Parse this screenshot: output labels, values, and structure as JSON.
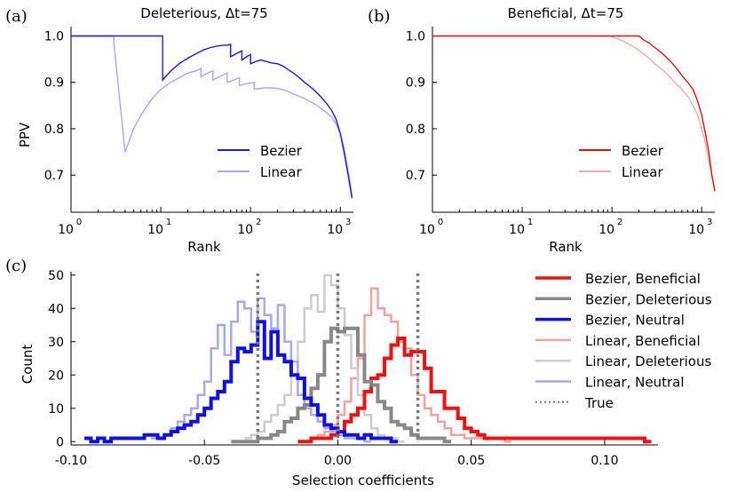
{
  "chart_data": [
    {
      "panel": "(a)",
      "type": "line",
      "title": "Deleterious, Δt=75",
      "xlabel": "Rank",
      "ylabel": "PPV",
      "xscale": "log",
      "xlim": [
        1,
        1400
      ],
      "ylim": [
        0.62,
        1.02
      ],
      "xticks": [
        "10",
        "10",
        "10",
        "10"
      ],
      "xtick_exponents": [
        "0",
        "1",
        "2",
        "3"
      ],
      "xtick_values": [
        1,
        10,
        100,
        1000
      ],
      "yticks": [
        "0.7",
        "0.8",
        "0.9",
        "1.0"
      ],
      "ytick_values": [
        0.7,
        0.8,
        0.9,
        1.0
      ],
      "legend_position": "lower-right",
      "series": [
        {
          "name": "Bezier",
          "color": "#1a1ad9",
          "x": [
            1,
            10.5,
            10.5,
            11,
            13,
            16,
            20,
            25,
            30,
            36,
            42,
            50,
            55,
            60,
            60,
            70,
            80,
            80,
            90,
            100,
            100,
            115,
            130,
            150,
            170,
            200,
            230,
            260,
            300,
            350,
            400,
            500,
            600,
            700,
            800,
            900,
            1000,
            1100,
            1200,
            1300,
            1350
          ],
          "y": [
            1.0,
            1.0,
            0.905,
            0.91,
            0.925,
            0.94,
            0.952,
            0.962,
            0.97,
            0.975,
            0.978,
            0.98,
            0.98,
            0.982,
            0.955,
            0.962,
            0.968,
            0.948,
            0.955,
            0.96,
            0.94,
            0.945,
            0.948,
            0.945,
            0.942,
            0.94,
            0.935,
            0.928,
            0.92,
            0.91,
            0.9,
            0.885,
            0.87,
            0.855,
            0.84,
            0.82,
            0.79,
            0.75,
            0.71,
            0.67,
            0.65
          ]
        },
        {
          "name": "Linear",
          "color": "#a8a8f0",
          "x": [
            1,
            3,
            3,
            4,
            5,
            6,
            8,
            10,
            13,
            16,
            20,
            25,
            28,
            28,
            32,
            38,
            38,
            45,
            55,
            55,
            65,
            75,
            75,
            90,
            110,
            110,
            140,
            170,
            200,
            250,
            300,
            350,
            400,
            500,
            600,
            700,
            800,
            900,
            1000,
            1100,
            1200,
            1300,
            1350
          ],
          "y": [
            1.0,
            1.0,
            0.985,
            0.75,
            0.8,
            0.83,
            0.865,
            0.885,
            0.9,
            0.91,
            0.92,
            0.925,
            0.93,
            0.912,
            0.918,
            0.925,
            0.905,
            0.912,
            0.92,
            0.9,
            0.905,
            0.91,
            0.893,
            0.897,
            0.9,
            0.885,
            0.888,
            0.888,
            0.887,
            0.882,
            0.875,
            0.87,
            0.865,
            0.855,
            0.845,
            0.835,
            0.825,
            0.81,
            0.79,
            0.76,
            0.72,
            0.68,
            0.655
          ]
        }
      ]
    },
    {
      "panel": "(b)",
      "type": "line",
      "title": "Beneficial, Δt=75",
      "xlabel": "Rank",
      "ylabel": "",
      "xscale": "log",
      "xlim": [
        1,
        1400
      ],
      "ylim": [
        0.62,
        1.02
      ],
      "xticks": [
        "10",
        "10",
        "10",
        "10"
      ],
      "xtick_exponents": [
        "0",
        "1",
        "2",
        "3"
      ],
      "xtick_values": [
        1,
        10,
        100,
        1000
      ],
      "yticks": [
        "0.7",
        "0.8",
        "0.9",
        "1.0"
      ],
      "ytick_values": [
        0.7,
        0.8,
        0.9,
        1.0
      ],
      "legend_position": "lower-right",
      "series": [
        {
          "name": "Bezier",
          "color": "#e81010",
          "x": [
            1,
            200,
            230,
            260,
            300,
            350,
            400,
            450,
            500,
            550,
            600,
            700,
            800,
            900,
            1000,
            1100,
            1200,
            1300,
            1400
          ],
          "y": [
            1.0,
            1.0,
            0.99,
            0.985,
            0.975,
            0.965,
            0.955,
            0.945,
            0.935,
            0.925,
            0.915,
            0.9,
            0.885,
            0.86,
            0.83,
            0.79,
            0.75,
            0.7,
            0.665
          ]
        },
        {
          "name": "Linear",
          "color": "#f4aaaa",
          "x": [
            1,
            95,
            110,
            130,
            150,
            180,
            210,
            250,
            300,
            350,
            400,
            450,
            500,
            600,
            700,
            800,
            900,
            1000,
            1100,
            1200,
            1300,
            1400
          ],
          "y": [
            1.0,
            1.0,
            0.995,
            0.99,
            0.983,
            0.975,
            0.965,
            0.955,
            0.94,
            0.93,
            0.92,
            0.91,
            0.9,
            0.885,
            0.87,
            0.85,
            0.83,
            0.8,
            0.77,
            0.73,
            0.7,
            0.67
          ]
        }
      ]
    },
    {
      "panel": "(c)",
      "type": "histogram",
      "title": "",
      "xlabel": "Selection coefficients",
      "ylabel": "Count",
      "xlim": [
        -0.1,
        0.12
      ],
      "ylim": [
        -1,
        51
      ],
      "xticks": [
        "-0.10",
        "-0.05",
        "0.00",
        "0.05",
        "0.10"
      ],
      "xtick_values": [
        -0.1,
        -0.05,
        0.0,
        0.05,
        0.1
      ],
      "yticks": [
        "0",
        "10",
        "20",
        "30",
        "40",
        "50"
      ],
      "ytick_values": [
        0,
        10,
        20,
        30,
        40,
        50
      ],
      "bin_width": 0.0025,
      "legend_position": "outside-right",
      "series": [
        {
          "name": "Bezier, Beneficial",
          "color": "#ee1111",
          "start": -0.015,
          "counts": [
            0,
            0,
            1,
            1,
            1,
            2,
            3,
            6,
            8,
            10,
            15,
            19,
            20,
            25,
            29,
            31,
            26,
            27,
            27,
            22,
            15,
            15,
            10,
            10,
            7,
            4,
            3,
            2,
            1,
            1,
            1,
            1,
            1,
            1,
            1,
            1,
            1,
            1,
            1,
            1,
            1,
            1,
            1,
            1,
            1,
            1,
            1,
            1,
            1,
            1,
            1,
            1,
            0
          ]
        },
        {
          "name": "Bezier, Deleterious",
          "color": "#888888",
          "start": -0.04,
          "counts": [
            0,
            0,
            0,
            0,
            1,
            1,
            2,
            3,
            6,
            7,
            10,
            11,
            16,
            20,
            30,
            34,
            33,
            34,
            34,
            26,
            18,
            17,
            12,
            10,
            6,
            5,
            4,
            2,
            1,
            1,
            1,
            1,
            0
          ]
        },
        {
          "name": "Bezier, Neutral",
          "color": "#1111dd",
          "start": -0.095,
          "counts": [
            1,
            0,
            1,
            0,
            1,
            1,
            1,
            1,
            1,
            2,
            2,
            1,
            2,
            3,
            4,
            5,
            6,
            8,
            10,
            13,
            15,
            18,
            24,
            28,
            27,
            29,
            36,
            25,
            33,
            26,
            24,
            20,
            19,
            13,
            11,
            8,
            5,
            4,
            3,
            2,
            2,
            1,
            2,
            1,
            1,
            1,
            0
          ]
        },
        {
          "name": "Linear, Beneficial",
          "color": "#f4a0a0",
          "start": -0.01,
          "counts": [
            1,
            2,
            3,
            5,
            8,
            12,
            19,
            25,
            38,
            46,
            40,
            38,
            36,
            30,
            28,
            20,
            14,
            10,
            8,
            6,
            4,
            2,
            2,
            1,
            1,
            1,
            1,
            1,
            1,
            0
          ]
        },
        {
          "name": "Linear, Deleterious",
          "color": "#cccccc",
          "start": -0.035,
          "counts": [
            1,
            2,
            3,
            6,
            8,
            11,
            14,
            20,
            30,
            40,
            44,
            39,
            50,
            47,
            40,
            32,
            22,
            14,
            8,
            4,
            2,
            1,
            1,
            0
          ]
        },
        {
          "name": "Linear, Neutral",
          "color": "#a8a8ee",
          "start": -0.07,
          "counts": [
            1,
            1,
            2,
            4,
            6,
            8,
            10,
            14,
            18,
            28,
            35,
            26,
            36,
            42,
            40,
            33,
            43,
            38,
            34,
            41,
            30,
            24,
            14,
            10,
            8,
            6,
            4,
            3,
            2,
            1,
            1,
            1,
            0
          ]
        },
        {
          "name": "True",
          "color": "#777777",
          "type": "vline",
          "x": [
            -0.03,
            0.0,
            0.03
          ]
        }
      ]
    }
  ]
}
